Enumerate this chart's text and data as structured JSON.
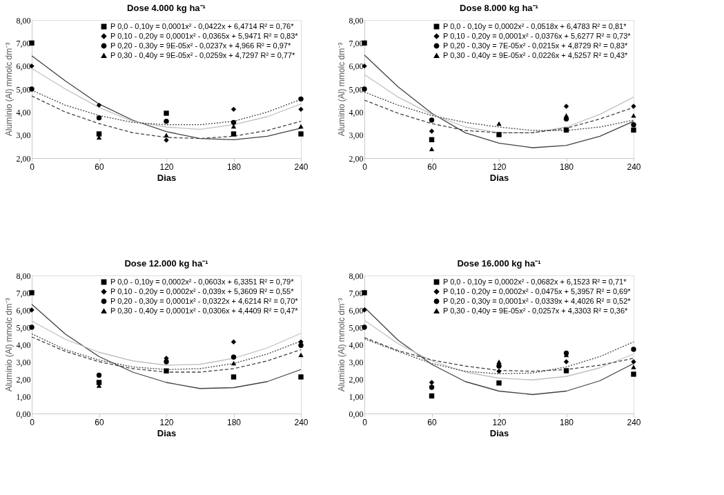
{
  "chart_data": [
    {
      "type": "scatter",
      "title": "Dose 4.000 kg ha⁻¹",
      "xlabel": "Dias",
      "ylabel": "Alumínio (Al) mmolc dm⁻³",
      "x": [
        0,
        60,
        120,
        180,
        240
      ],
      "xlim": [
        0,
        240
      ],
      "xticks": [
        0,
        60,
        120,
        180,
        240
      ],
      "ylim": [
        2,
        8
      ],
      "yticks": [
        {
          "value": 2,
          "label": "2,00"
        },
        {
          "value": 3,
          "label": "3,00"
        },
        {
          "value": 4,
          "label": "4,00"
        },
        {
          "value": 5,
          "label": "5,00"
        },
        {
          "value": 6,
          "label": "6,00"
        },
        {
          "value": 7,
          "label": "7,00"
        },
        {
          "value": 8,
          "label": "8,00"
        }
      ],
      "grid": false,
      "legend": "top right",
      "series": [
        {
          "name": "P 0,0 - 0,10y = 0,0001x² - 0,0422x + 6,4714 R² = 0,76*",
          "color": "#000000",
          "marker": "square",
          "values": [
            7.0,
            3.05,
            3.95,
            3.05,
            3.05
          ]
        },
        {
          "name": "P 0,10 - 0,20y = 0,0001x² - 0,0365x + 5,9471 R² = 0,83*",
          "color": "#000000",
          "marker": "diamond",
          "values": [
            6.0,
            4.3,
            2.78,
            4.12,
            4.12
          ]
        },
        {
          "name": "P 0,20 - 0,30y = 9E-05x² - 0,0237x + 4,966 R² = 0,97*",
          "color": "#000000",
          "marker": "circle",
          "values": [
            5.0,
            3.75,
            3.6,
            3.55,
            4.57
          ]
        },
        {
          "name": "P 0,30 - 0,40y = 9E-05x² - 0,0259x + 4,7297 R² = 0,77*",
          "color": "#000000",
          "marker": "triangle",
          "values": [
            null,
            2.9,
            3.0,
            3.38,
            3.38
          ]
        },
        {
          "type": "line",
          "color": "#404040",
          "line_style": "solid",
          "x": [
            0,
            30,
            60,
            90,
            120,
            150,
            180,
            210,
            240
          ],
          "values": [
            6.45,
            5.35,
            4.35,
            3.65,
            3.15,
            2.85,
            2.8,
            2.95,
            3.3
          ]
        },
        {
          "type": "line",
          "color": "#c0c0c0",
          "line_style": "solid",
          "x": [
            0,
            30,
            60,
            90,
            120,
            150,
            180,
            210,
            240
          ],
          "values": [
            5.9,
            5.0,
            4.2,
            3.6,
            3.35,
            3.25,
            3.45,
            3.8,
            4.35
          ]
        },
        {
          "type": "line",
          "color": "#404040",
          "line_style": "dotted",
          "x": [
            0,
            30,
            60,
            90,
            120,
            150,
            180,
            210,
            240
          ],
          "values": [
            4.95,
            4.3,
            3.85,
            3.55,
            3.45,
            3.45,
            3.6,
            4.0,
            4.55
          ]
        },
        {
          "type": "line",
          "color": "#404040",
          "line_style": "dashed",
          "x": [
            0,
            30,
            60,
            90,
            120,
            150,
            180,
            210,
            240
          ],
          "values": [
            4.7,
            4.0,
            3.5,
            3.1,
            2.9,
            2.85,
            2.95,
            3.2,
            3.6
          ]
        }
      ]
    },
    {
      "type": "scatter",
      "title": "Dose 8.000 kg ha⁻¹",
      "xlabel": "Dias",
      "ylabel": "Alumínio (Al) mmolc dm⁻³",
      "x": [
        0,
        60,
        120,
        180,
        240
      ],
      "xlim": [
        0,
        240
      ],
      "xticks": [
        0,
        60,
        120,
        180,
        240
      ],
      "ylim": [
        2,
        8
      ],
      "yticks": [
        {
          "value": 2,
          "label": "2,00"
        },
        {
          "value": 3,
          "label": "3,00"
        },
        {
          "value": 4,
          "label": "4,00"
        },
        {
          "value": 5,
          "label": "5,00"
        },
        {
          "value": 6,
          "label": "6,00"
        },
        {
          "value": 7,
          "label": "7,00"
        },
        {
          "value": 8,
          "label": "8,00"
        }
      ],
      "grid": false,
      "legend": "top right",
      "series": [
        {
          "name": "P 0,0 - 0,10y = 0,0002x² - 0,0518x + 6,4783 R² = 0,81*",
          "color": "#000000",
          "marker": "square",
          "values": [
            7.0,
            2.8,
            3.02,
            3.22,
            3.22
          ]
        },
        {
          "name": "P 0,10 - 0,20y = 0,0001x² - 0,0376x + 5,6277 R² = 0,73*",
          "color": "#000000",
          "marker": "diamond",
          "values": [
            6.0,
            3.17,
            null,
            4.25,
            4.25
          ]
        },
        {
          "name": "P 0,20 - 0,30y = 7E-05x² - 0,0215x + 4,8729 R² = 0,83*",
          "color": "#000000",
          "marker": "circle",
          "values": [
            5.0,
            3.65,
            null,
            3.7,
            3.45
          ]
        },
        {
          "name": "P 0,30 - 0,40y = 9E-05x² - 0,0226x + 4,5257 R² = 0,43*",
          "color": "#000000",
          "marker": "triangle",
          "values": [
            null,
            2.4,
            3.5,
            3.85,
            3.85
          ]
        },
        {
          "type": "line",
          "color": "#404040",
          "line_style": "solid",
          "x": [
            0,
            30,
            60,
            90,
            120,
            150,
            180,
            210,
            240
          ],
          "values": [
            6.48,
            5.1,
            3.95,
            3.1,
            2.65,
            2.45,
            2.55,
            2.95,
            3.6
          ]
        },
        {
          "type": "line",
          "color": "#c0c0c0",
          "line_style": "solid",
          "x": [
            0,
            30,
            60,
            90,
            120,
            150,
            180,
            210,
            240
          ],
          "values": [
            5.63,
            4.65,
            3.9,
            3.35,
            3.1,
            3.1,
            3.35,
            3.9,
            4.65
          ]
        },
        {
          "type": "line",
          "color": "#404040",
          "line_style": "dotted",
          "x": [
            0,
            30,
            60,
            90,
            120,
            150,
            180,
            210,
            240
          ],
          "values": [
            4.87,
            4.3,
            3.85,
            3.55,
            3.35,
            3.2,
            3.2,
            3.35,
            3.65
          ]
        },
        {
          "type": "line",
          "color": "#404040",
          "line_style": "dashed",
          "x": [
            0,
            30,
            60,
            90,
            120,
            150,
            180,
            210,
            240
          ],
          "values": [
            4.52,
            3.95,
            3.5,
            3.2,
            3.1,
            3.1,
            3.3,
            3.7,
            4.2
          ]
        }
      ]
    },
    {
      "type": "scatter",
      "title": "Dose 12.000 kg ha⁻¹",
      "xlabel": "Dias",
      "ylabel": "Alumínio (Al) mmolc dm⁻³",
      "x": [
        0,
        60,
        120,
        180,
        240
      ],
      "xlim": [
        0,
        240
      ],
      "xticks": [
        0,
        60,
        120,
        180,
        240
      ],
      "ylim": [
        0,
        8
      ],
      "yticks": [
        {
          "value": 0,
          "label": "0,00"
        },
        {
          "value": 1,
          "label": "1,00"
        },
        {
          "value": 2,
          "label": "2,00"
        },
        {
          "value": 3,
          "label": "3,00"
        },
        {
          "value": 4,
          "label": "4,00"
        },
        {
          "value": 5,
          "label": "5,00"
        },
        {
          "value": 6,
          "label": "6,00"
        },
        {
          "value": 7,
          "label": "7,00"
        },
        {
          "value": 8,
          "label": "8,00"
        }
      ],
      "grid": false,
      "legend": "top right",
      "series": [
        {
          "name": "P 0,0 - 0,10y = 0,0002x² - 0,0603x + 6,3351 R² = 0,79*",
          "color": "#000000",
          "marker": "square",
          "values": [
            7.0,
            1.8,
            2.47,
            2.12,
            2.12
          ]
        },
        {
          "name": "P 0,10 - 0,20y = 0,0002x² - 0,039x + 5,3609 R² = 0,55*",
          "color": "#000000",
          "marker": "diamond",
          "values": [
            6.0,
            null,
            3.2,
            4.15,
            4.15
          ]
        },
        {
          "name": "P 0,20 - 0,30y = 0,0001x² - 0,0322x + 4,6214 R² = 0,70*",
          "color": "#000000",
          "marker": "circle",
          "values": [
            5.0,
            2.22,
            3.0,
            3.27,
            3.95
          ]
        },
        {
          "name": "P 0,30 - 0,40y = 0,0001x² - 0,0306x + 4,4409 R² = 0,47*",
          "color": "#000000",
          "marker": "triangle",
          "values": [
            null,
            1.62,
            null,
            2.92,
            3.4
          ]
        },
        {
          "type": "line",
          "color": "#404040",
          "line_style": "solid",
          "x": [
            0,
            30,
            60,
            90,
            120,
            150,
            180,
            210,
            240
          ],
          "values": [
            6.33,
            4.6,
            3.3,
            2.4,
            1.8,
            1.45,
            1.5,
            1.85,
            2.55
          ]
        },
        {
          "type": "line",
          "color": "#c0c0c0",
          "line_style": "solid",
          "x": [
            0,
            30,
            60,
            90,
            120,
            150,
            180,
            210,
            240
          ],
          "values": [
            5.36,
            4.3,
            3.55,
            3.05,
            2.8,
            2.85,
            3.2,
            3.8,
            4.65
          ]
        },
        {
          "type": "line",
          "color": "#404040",
          "line_style": "dotted",
          "x": [
            0,
            30,
            60,
            90,
            120,
            150,
            180,
            210,
            240
          ],
          "values": [
            4.62,
            3.7,
            3.1,
            2.7,
            2.55,
            2.6,
            2.9,
            3.45,
            4.2
          ]
        },
        {
          "type": "line",
          "color": "#404040",
          "line_style": "dashed",
          "x": [
            0,
            30,
            60,
            90,
            120,
            150,
            180,
            210,
            240
          ],
          "values": [
            4.44,
            3.6,
            3.0,
            2.6,
            2.4,
            2.4,
            2.6,
            3.05,
            3.7
          ]
        }
      ]
    },
    {
      "type": "scatter",
      "title": "Dose 16.000 kg ha⁻¹",
      "xlabel": "Dias",
      "ylabel": "Alumínio (Al) mmolc dm⁻³",
      "x": [
        0,
        60,
        120,
        180,
        240
      ],
      "xlim": [
        0,
        240
      ],
      "xticks": [
        0,
        60,
        120,
        180,
        240
      ],
      "ylim": [
        0,
        8
      ],
      "yticks": [
        {
          "value": 0,
          "label": "0,00"
        },
        {
          "value": 1,
          "label": "1,00"
        },
        {
          "value": 2,
          "label": "2,00"
        },
        {
          "value": 3,
          "label": "3,00"
        },
        {
          "value": 4,
          "label": "4,00"
        },
        {
          "value": 5,
          "label": "5,00"
        },
        {
          "value": 6,
          "label": "6,00"
        },
        {
          "value": 7,
          "label": "7,00"
        },
        {
          "value": 8,
          "label": "8,00"
        }
      ],
      "grid": false,
      "legend": "top right",
      "series": [
        {
          "name": "P 0,0 - 0,10y = 0,0002x² - 0,0682x + 6,1523 R² = 0,71*",
          "color": "#000000",
          "marker": "square",
          "values": [
            7.0,
            1.02,
            1.77,
            2.48,
            2.28
          ]
        },
        {
          "name": "P 0,10 - 0,20y = 0,0002x² - 0,0475x + 5,3957 R² = 0,69*",
          "color": "#000000",
          "marker": "diamond",
          "values": [
            6.0,
            1.8,
            2.45,
            3.0,
            3.0
          ]
        },
        {
          "name": "P 0,20 - 0,30y = 0,0001x² - 0,0339x + 4,4026 R² = 0,52*",
          "color": "#000000",
          "marker": "circle",
          "values": [
            5.0,
            1.52,
            2.75,
            3.5,
            3.72
          ]
        },
        {
          "name": "P 0,30 - 0,40y = 9E-05x² - 0,0257x + 4,3303 R² = 0,36*",
          "color": "#000000",
          "marker": "triangle",
          "values": [
            null,
            null,
            3.0,
            3.4,
            2.7
          ]
        },
        {
          "type": "line",
          "color": "#404040",
          "line_style": "solid",
          "x": [
            0,
            30,
            60,
            90,
            120,
            150,
            180,
            210,
            240
          ],
          "values": [
            6.15,
            4.25,
            2.85,
            1.85,
            1.3,
            1.1,
            1.3,
            1.9,
            2.9
          ]
        },
        {
          "type": "line",
          "color": "#c0c0c0",
          "line_style": "solid",
          "x": [
            0,
            30,
            60,
            90,
            120,
            150,
            180,
            210,
            240
          ],
          "values": [
            5.4,
            4.05,
            3.05,
            2.4,
            2.05,
            1.95,
            2.15,
            2.65,
            3.45
          ]
        },
        {
          "type": "line",
          "color": "#404040",
          "line_style": "dashed",
          "x": [
            0,
            30,
            60,
            90,
            120,
            150,
            180,
            210,
            240
          ],
          "values": [
            4.4,
            3.65,
            3.1,
            2.75,
            2.5,
            2.45,
            2.55,
            2.8,
            3.2
          ]
        },
        {
          "type": "line",
          "color": "#404040",
          "line_style": "dotted",
          "x": [
            0,
            30,
            60,
            90,
            120,
            150,
            180,
            210,
            240
          ],
          "values": [
            4.33,
            3.6,
            2.9,
            2.45,
            2.3,
            2.35,
            2.7,
            3.3,
            4.15
          ]
        }
      ]
    }
  ]
}
